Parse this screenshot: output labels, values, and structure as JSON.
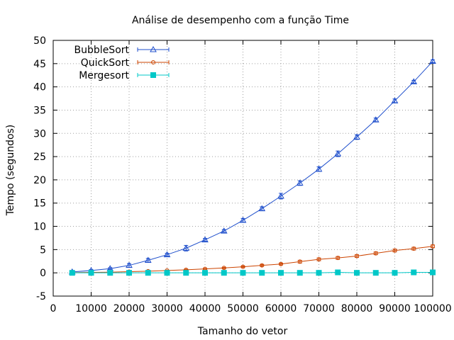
{
  "chart_data": {
    "type": "line",
    "title": "Análise de desempenho com a função Time",
    "xlabel": "Tamanho do vetor",
    "ylabel": "Tempo (segundos)",
    "xlim": [
      0,
      100000
    ],
    "ylim": [
      -5,
      50
    ],
    "xticks": [
      0,
      10000,
      20000,
      30000,
      40000,
      50000,
      60000,
      70000,
      80000,
      90000,
      100000
    ],
    "yticks": [
      -5,
      0,
      5,
      10,
      15,
      20,
      25,
      30,
      35,
      40,
      45,
      50
    ],
    "grid": true,
    "legend_position": "top-left",
    "x": [
      5000,
      10000,
      15000,
      20000,
      25000,
      30000,
      35000,
      40000,
      45000,
      50000,
      55000,
      60000,
      65000,
      70000,
      75000,
      80000,
      85000,
      90000,
      95000,
      100000
    ],
    "series": [
      {
        "name": "BubbleSort",
        "color": "#1f4fcc",
        "marker": "triangle",
        "values": [
          0.2,
          0.5,
          0.9,
          1.6,
          2.7,
          3.9,
          5.3,
          7.1,
          9.0,
          11.3,
          13.8,
          16.5,
          19.3,
          22.3,
          25.6,
          29.2,
          32.9,
          37.0,
          41.1,
          45.5
        ],
        "errors": [
          0.2,
          0.2,
          0.2,
          0.4,
          0.4,
          0.3,
          0.6,
          0.3,
          0.3,
          0.4,
          0.4,
          0.6,
          0.5,
          0.5,
          0.6,
          0.5,
          0.4,
          0.4,
          0.3,
          0.3
        ]
      },
      {
        "name": "QuickSort",
        "color": "#cc4400",
        "marker": "circle",
        "values": [
          0.05,
          0.1,
          0.15,
          0.25,
          0.35,
          0.5,
          0.65,
          0.85,
          1.05,
          1.3,
          1.6,
          1.9,
          2.4,
          2.9,
          3.2,
          3.6,
          4.2,
          4.8,
          5.2,
          5.7
        ],
        "errors": [
          0.05,
          0.05,
          0.1,
          0.1,
          0.1,
          0.1,
          0.15,
          0.1,
          0.15,
          0.15,
          0.2,
          0.2,
          0.3,
          0.3,
          0.3,
          0.3,
          0.3,
          0.3,
          0.3,
          0.3
        ]
      },
      {
        "name": "Mergesort",
        "color": "#00c8c8",
        "marker": "square",
        "values": [
          0.0,
          0.0,
          0.0,
          0.0,
          0.0,
          0.0,
          0.0,
          0.0,
          0.0,
          0.0,
          0.0,
          0.0,
          0.0,
          0.0,
          0.1,
          0.0,
          0.0,
          0.0,
          0.1,
          0.1
        ],
        "errors": [
          0.05,
          0.05,
          0.05,
          0.05,
          0.05,
          0.05,
          0.05,
          0.05,
          0.05,
          0.05,
          0.05,
          0.05,
          0.05,
          0.05,
          0.1,
          0.05,
          0.05,
          0.05,
          0.1,
          0.1
        ]
      }
    ]
  }
}
